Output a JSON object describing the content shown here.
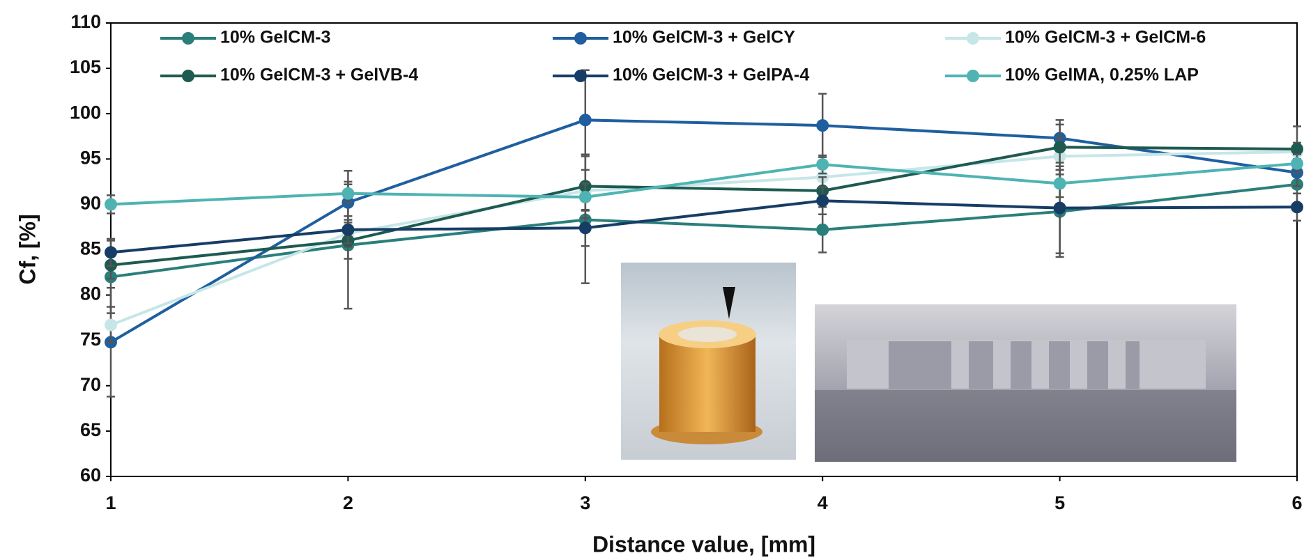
{
  "chart_data": {
    "type": "line",
    "x": [
      1,
      2,
      3,
      4,
      5,
      6
    ],
    "xlabel": "Distance value, [mm]",
    "ylabel": "Cf, [%]",
    "xlim": [
      1,
      6
    ],
    "xticks": [
      1,
      2,
      3,
      4,
      5,
      6
    ],
    "ylim": [
      60,
      110
    ],
    "yticks": [
      60,
      65,
      70,
      75,
      80,
      85,
      90,
      95,
      100,
      105,
      110
    ],
    "grid": false,
    "legend": "top",
    "series": [
      {
        "name": "10% GelCM-3",
        "color": "#2a7f7a",
        "values": [
          82.0,
          85.5,
          88.3,
          87.2,
          89.2,
          92.2
        ],
        "errors": [
          4,
          7,
          7,
          2.5,
          5,
          1
        ]
      },
      {
        "name": "10% GelCM-3 + GelCY",
        "color": "#1f5fa0",
        "values": [
          74.8,
          90.2,
          99.3,
          98.7,
          97.3,
          93.5
        ],
        "errors": [
          6,
          3.5,
          5.5,
          3.5,
          2,
          1.5
        ]
      },
      {
        "name": "10% GelCM-3 + GelCM-6",
        "color": "#c6e6e8",
        "values": [
          76.7,
          86.8,
          91.5,
          93.0,
          95.3,
          95.8
        ],
        "errors": [
          2,
          1.5,
          4,
          1.5,
          2,
          1
        ]
      },
      {
        "name": "10% GelCM-3 + GelVB-4",
        "color": "#1e5a50",
        "values": [
          83.3,
          86.0,
          92.0,
          91.5,
          96.3,
          96.1
        ],
        "errors": [
          1.5,
          2,
          3.5,
          1.5,
          2.5,
          2.5
        ]
      },
      {
        "name": "10% GelCM-3 + GelPA-4",
        "color": "#173d66",
        "values": [
          84.7,
          87.2,
          87.4,
          90.4,
          89.6,
          89.7
        ],
        "errors": [
          1.5,
          1.5,
          2,
          1.5,
          5,
          1.5
        ]
      },
      {
        "name": "10% GelMA, 0.25% LAP",
        "color": "#4fb3b3",
        "values": [
          90.0,
          91.2,
          90.8,
          94.4,
          92.3,
          94.5
        ],
        "errors": [
          1,
          1,
          1.5,
          1,
          1.5,
          1
        ]
      }
    ]
  }
}
